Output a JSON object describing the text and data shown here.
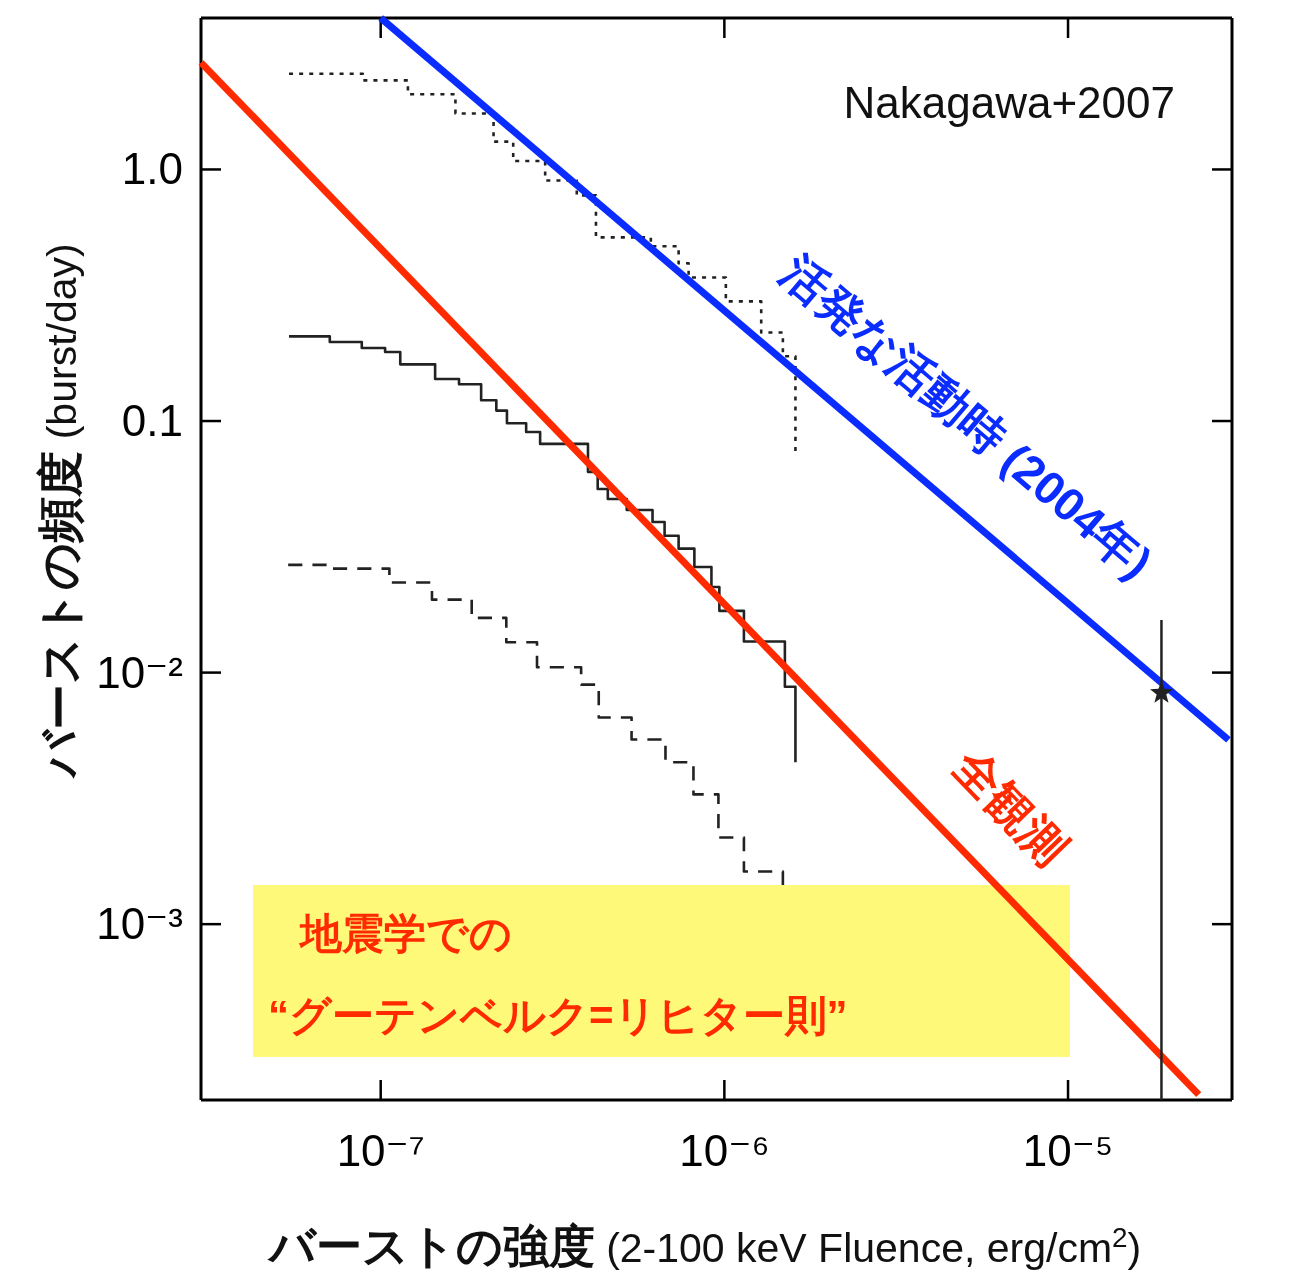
{
  "chart_data": {
    "type": "step",
    "log": "xy",
    "xlabel": "**バーストの強度** (2-100 keV Fluence, erg/cm$^{2}$)",
    "ylabel": "**バーストの頻度** (burst/day)",
    "xlim": [
      3e-08,
      3e-05
    ],
    "ylim": [
      0.0002,
      4
    ],
    "xticks": [
      {
        "value": 1e-07,
        "label": "10⁻⁷"
      },
      {
        "value": 1e-06,
        "label": "10⁻⁶"
      },
      {
        "value": 1e-05,
        "label": "10⁻⁵"
      }
    ],
    "yticks": [
      {
        "value": 0.001,
        "label": "10⁻³"
      },
      {
        "value": 0.01,
        "label": "10⁻²"
      },
      {
        "value": 0.1,
        "label": "0.1"
      },
      {
        "value": 1,
        "label": "1.0"
      }
    ],
    "series": [
      {
        "color": "#222222",
        "line_style": "solid",
        "x": [
          5.41e-08,
          7.11e-08,
          8.81e-08,
          1.03e-07,
          1.14e-07,
          1.44e-07,
          1.69e-07,
          1.96e-07,
          2.17e-07,
          2.33e-07,
          2.65e-07,
          2.91e-07,
          4.01e-07,
          4.28e-07,
          4.58e-07,
          5.2e-07,
          6.18e-07,
          6.7e-07,
          7.36e-07,
          8.18e-07,
          9.17e-07,
          9.67e-07,
          1.14e-06,
          1.5e-06,
          1.61e-06
        ],
        "values": [
          0.217,
          0.206,
          0.195,
          0.188,
          0.168,
          0.147,
          0.14,
          0.121,
          0.11,
          0.098,
          0.0904,
          0.0811,
          0.0628,
          0.0537,
          0.049,
          0.0443,
          0.0397,
          0.035,
          0.0311,
          0.0263,
          0.0219,
          0.0176,
          0.0133,
          0.00879,
          0.0044
        ]
      },
      {
        "color": "#222222",
        "line_style": "dotted",
        "x": [
          5.41e-08,
          8.87e-08,
          1.2e-07,
          1.65e-07,
          2.13e-07,
          2.43e-07,
          3.01e-07,
          3.72e-07,
          4.23e-07,
          6.11e-07,
          7.36e-07,
          7.87e-07,
          1.01e-06,
          1.28e-06,
          1.48e-06,
          1.61e-06
        ],
        "values": [
          2.4,
          2.26,
          1.99,
          1.67,
          1.29,
          1.08,
          0.904,
          0.789,
          0.537,
          0.495,
          0.424,
          0.372,
          0.299,
          0.225,
          0.181,
          0.076
        ]
      },
      {
        "color": "#222222",
        "line_style": "dashed",
        "x": [
          5.38e-08,
          7.11e-08,
          1.06e-07,
          1.41e-07,
          1.84e-07,
          2.32e-07,
          2.85e-07,
          3.83e-07,
          4.31e-07,
          5.37e-07,
          6.74e-07,
          8.13e-07,
          9.61e-07,
          1.14e-06,
          1.48e-06
        ],
        "values": [
          0.0268,
          0.0259,
          0.0228,
          0.0195,
          0.0165,
          0.0132,
          0.0105,
          0.00896,
          0.00663,
          0.00542,
          0.0044,
          0.00328,
          0.00221,
          0.00162,
          0.00143
        ]
      },
      {
        "type": "line",
        "name": "全観測",
        "color": "#ff2a00",
        "line_style": "solid",
        "x": [
          3e-08,
          2.4e-05
        ],
        "values": [
          2.66,
          0.00021
        ]
      },
      {
        "type": "line",
        "name": "活発な活動時 (2004年)",
        "color": "#0a2cff",
        "line_style": "solid",
        "x": [
          1e-07,
          2.93e-05
        ],
        "values": [
          4,
          0.0054
        ]
      },
      {
        "type": "scatter",
        "color": "#222222",
        "marker": "star",
        "x": [
          1.87e-05
        ],
        "values": [
          0.0083
        ],
        "errors": [
          [
            0.0002,
            0.0162
          ]
        ]
      }
    ],
    "annotations": [
      "Nakagawa+2007",
      "地震学での",
      "“グーテンベルク=リヒター則”"
    ]
  }
}
